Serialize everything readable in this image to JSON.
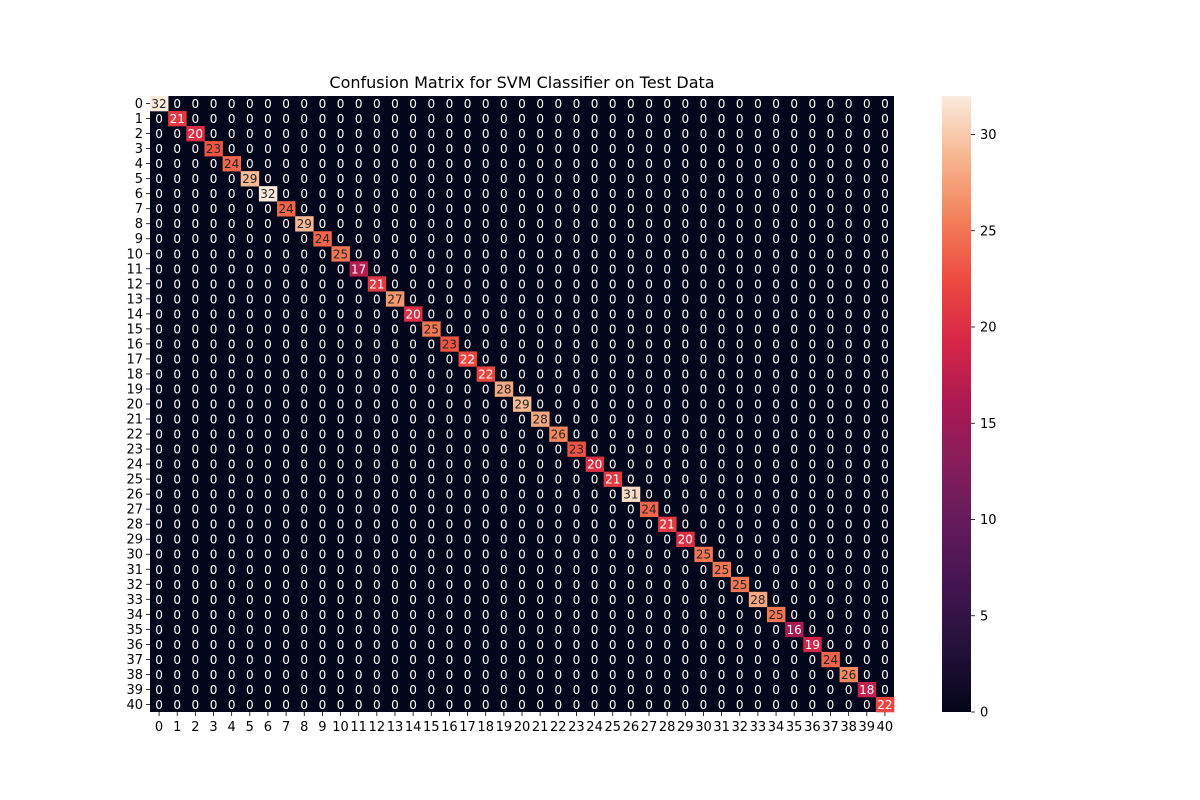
{
  "chart_data": {
    "type": "heatmap",
    "title": "Confusion Matrix for SVM Classifier on Test Data",
    "xlabel": "",
    "ylabel": "",
    "row_labels": [
      "0",
      "1",
      "2",
      "3",
      "4",
      "5",
      "6",
      "7",
      "8",
      "9",
      "10",
      "11",
      "12",
      "13",
      "14",
      "15",
      "16",
      "17",
      "18",
      "19",
      "20",
      "21",
      "22",
      "23",
      "24",
      "25",
      "26",
      "27",
      "28",
      "29",
      "30",
      "31",
      "32",
      "33",
      "34",
      "35",
      "36",
      "37",
      "38",
      "39",
      "40"
    ],
    "col_labels": [
      "0",
      "1",
      "2",
      "3",
      "4",
      "5",
      "6",
      "7",
      "8",
      "9",
      "10",
      "11",
      "12",
      "13",
      "14",
      "15",
      "16",
      "17",
      "18",
      "19",
      "20",
      "21",
      "22",
      "23",
      "24",
      "25",
      "26",
      "27",
      "28",
      "29",
      "30",
      "31",
      "32",
      "33",
      "34",
      "35",
      "36",
      "37",
      "38",
      "39",
      "40"
    ],
    "diagonal_values": [
      32,
      21,
      20,
      23,
      24,
      29,
      32,
      24,
      29,
      24,
      25,
      17,
      21,
      27,
      20,
      25,
      23,
      22,
      22,
      28,
      29,
      28,
      26,
      23,
      20,
      21,
      31,
      24,
      21,
      20,
      25,
      25,
      25,
      28,
      25,
      16,
      19,
      24,
      26,
      18,
      22
    ],
    "off_diagonal_value": 0,
    "annotated": true,
    "colormap": "rocket",
    "vmin": 0,
    "vmax": 32,
    "colorbar_ticks": [
      0,
      5,
      10,
      15,
      20,
      25,
      30
    ],
    "colors": {
      "low": "#03051a",
      "high": "#faebdd",
      "text_on_dark": "#ffffff",
      "text_on_light": "#262626"
    }
  }
}
